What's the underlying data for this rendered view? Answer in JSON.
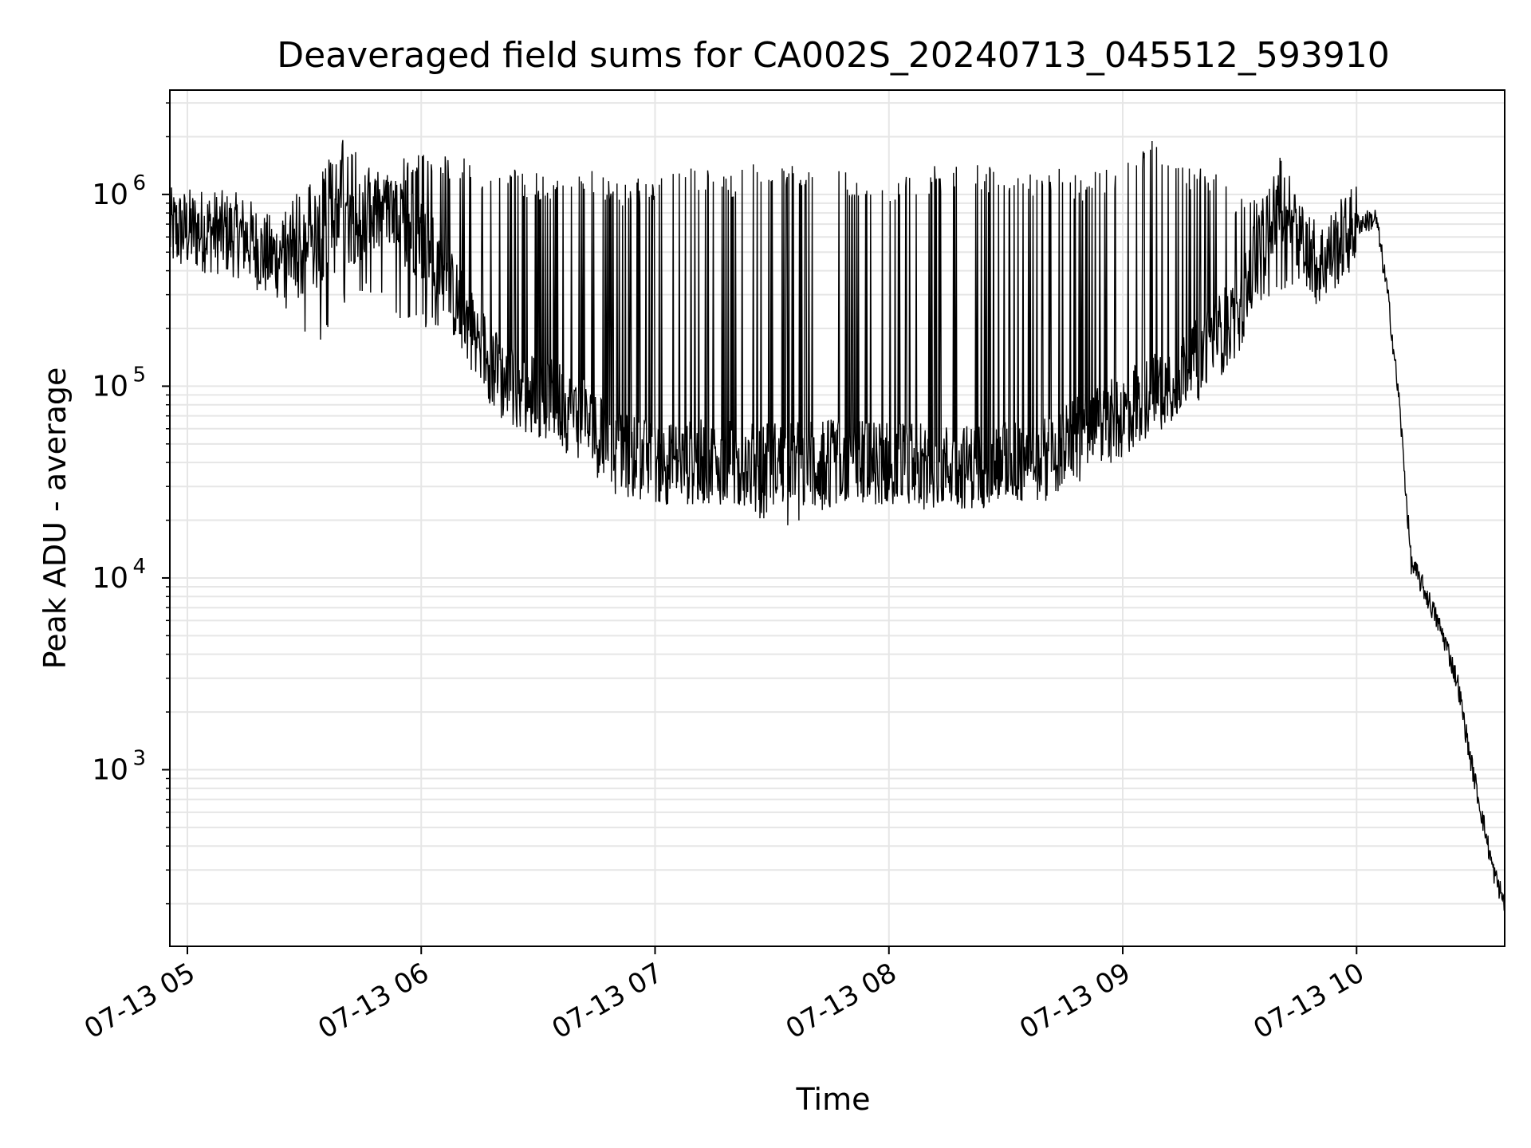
{
  "chart_data": {
    "type": "line",
    "title": "Deaveraged field sums for CA002S_20240713_045512_593910",
    "xlabel": "Time",
    "ylabel": "Peak ADU - average",
    "xlim": [
      "2024-07-13T04:55:30",
      "2024-07-13T10:38:00"
    ],
    "ylim": [
      120,
      3500000
    ],
    "yscale": "log",
    "grid": true,
    "x_ticks": [
      "07-13 05",
      "07-13 06",
      "07-13 07",
      "07-13 08",
      "07-13 09",
      "07-13 10"
    ],
    "x_tick_times": [
      "2024-07-13T05:00",
      "2024-07-13T06:00",
      "2024-07-13T07:00",
      "2024-07-13T08:00",
      "2024-07-13T09:00",
      "2024-07-13T10:00"
    ],
    "y_ticks": [
      {
        "value": 1000,
        "base": "10",
        "exp": "3"
      },
      {
        "value": 10000,
        "base": "10",
        "exp": "4"
      },
      {
        "value": 100000,
        "base": "10",
        "exp": "5"
      },
      {
        "value": 1000000,
        "base": "10",
        "exp": "6"
      }
    ],
    "line_color": "#000000",
    "grid_color": "#e6e6e6",
    "series": [
      {
        "x": [
          "2024-07-13T04:55:30",
          "2024-07-13T05:05",
          "2024-07-13T05:15",
          "2024-07-13T05:20",
          "2024-07-13T05:30",
          "2024-07-13T05:40",
          "2024-07-13T05:50",
          "2024-07-13T06:00",
          "2024-07-13T06:08",
          "2024-07-13T06:15",
          "2024-07-13T06:20",
          "2024-07-13T06:30",
          "2024-07-13T06:40",
          "2024-07-13T06:50",
          "2024-07-13T07:00",
          "2024-07-13T07:20",
          "2024-07-13T07:40",
          "2024-07-13T08:00",
          "2024-07-13T08:20",
          "2024-07-13T08:40",
          "2024-07-13T08:50",
          "2024-07-13T09:00",
          "2024-07-13T09:10",
          "2024-07-13T09:20",
          "2024-07-13T09:30",
          "2024-07-13T09:40",
          "2024-07-13T09:50",
          "2024-07-13T10:00",
          "2024-07-13T10:05",
          "2024-07-13T10:08",
          "2024-07-13T10:11",
          "2024-07-13T10:14",
          "2024-07-13T10:17",
          "2024-07-13T10:20",
          "2024-07-13T10:23",
          "2024-07-13T10:26",
          "2024-07-13T10:29",
          "2024-07-13T10:32",
          "2024-07-13T10:35",
          "2024-07-13T10:38"
        ],
        "y": [
          650000,
          650000,
          600000,
          480000,
          450000,
          700000,
          800000,
          600000,
          300000,
          170000,
          110000,
          90000,
          70000,
          45000,
          40000,
          40000,
          40000,
          40000,
          38000,
          42000,
          55000,
          70000,
          100000,
          140000,
          250000,
          1000000,
          420000,
          700000,
          750000,
          300000,
          80000,
          12000,
          9000,
          6500,
          4500,
          2800,
          1200,
          600,
          300,
          200
        ]
      }
    ],
    "spikes": {
      "start": "2024-07-13T05:24",
      "end": "2024-07-13T09:48",
      "peak_values": [
        900000,
        1200000,
        2000000,
        1300000,
        1600000,
        1700000,
        1500000,
        1400000,
        1300000,
        1400000,
        1300000,
        1200000,
        1300000,
        1400000,
        1300000,
        1500000,
        1600000,
        1400000,
        1300000,
        1200000,
        1400000,
        1500000,
        1400000,
        1300000,
        1400000,
        1300000,
        1400000,
        2000000,
        1500000,
        1300000,
        1000000,
        900000,
        800000
      ],
      "low_values": [
        220000,
        150000,
        250000,
        300000,
        200000,
        200000,
        150000,
        100000,
        60000,
        50000,
        50000,
        40000,
        35000,
        25000,
        25000,
        20000,
        18000,
        22000,
        25000,
        25000,
        22000,
        24000,
        25000,
        30000,
        35000,
        45000,
        60000,
        70000,
        80000,
        150000,
        250000,
        300000,
        350000
      ]
    }
  }
}
